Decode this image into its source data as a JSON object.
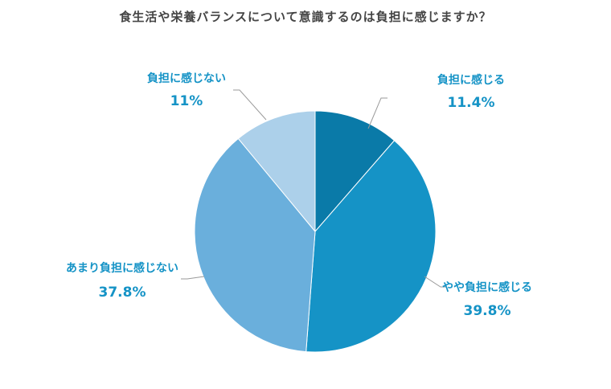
{
  "chart_data": {
    "type": "pie",
    "title": "食生活や栄養バランスについて意識するのは負担に感じますか？",
    "label_color": "#1593c6",
    "slices": [
      {
        "label": "負担に感じる",
        "value": 11.4,
        "value_text": "11.4%",
        "color": "#0a7aa8"
      },
      {
        "label": "やや負担に感じる",
        "value": 39.8,
        "value_text": "39.8%",
        "color": "#1593c6"
      },
      {
        "label": "あまり負担に感じない",
        "value": 37.8,
        "value_text": "37.8%",
        "color": "#6aafdc"
      },
      {
        "label": "負担に感じない",
        "value": 11,
        "value_text": "11%",
        "color": "#acd0ea"
      }
    ]
  }
}
